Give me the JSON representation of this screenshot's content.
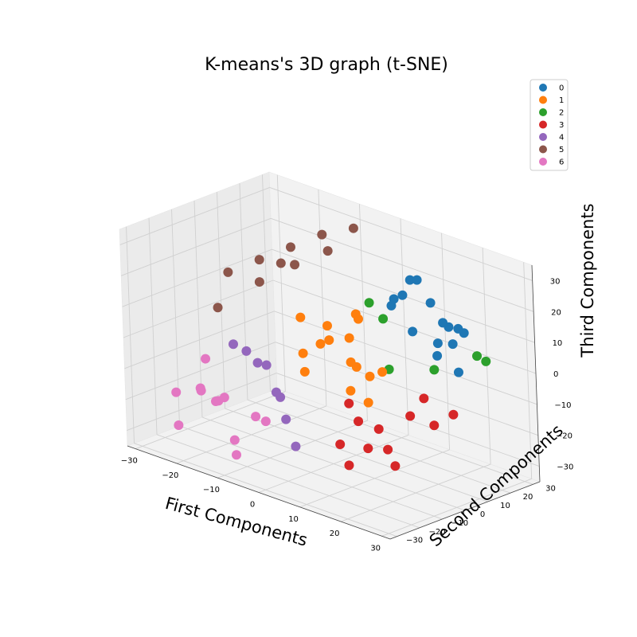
{
  "chart_data": {
    "type": "scatter",
    "projection": "3d",
    "title": "K-means's 3D graph (t-SNE)",
    "xlabel": "First Components",
    "ylabel": "Second Components",
    "zlabel": "Third Components",
    "xlim": [
      -32,
      32
    ],
    "ylim": [
      -33,
      33
    ],
    "zlim": [
      -35,
      35
    ],
    "x_ticks": [
      "−30",
      "−20",
      "−10",
      "0",
      "10",
      "20",
      "30"
    ],
    "y_ticks": [
      "−30",
      "−20",
      "−10",
      "0",
      "10",
      "20",
      "30"
    ],
    "z_ticks": [
      "−30",
      "−20",
      "−10",
      "0",
      "10",
      "20",
      "30"
    ],
    "grid": true,
    "legend_position": "top-right",
    "series": [
      {
        "name": "0",
        "color": "#1f77b4",
        "points": [
          [
            10,
            15,
            20
          ],
          [
            14,
            20,
            18
          ],
          [
            8,
            22,
            22
          ],
          [
            18,
            18,
            14
          ],
          [
            20,
            12,
            10
          ],
          [
            15,
            10,
            12
          ],
          [
            22,
            8,
            8
          ],
          [
            12,
            18,
            25
          ],
          [
            24,
            14,
            16
          ],
          [
            16,
            24,
            10
          ],
          [
            5,
            20,
            15
          ],
          [
            26,
            10,
            4
          ],
          [
            18,
            22,
            6
          ],
          [
            10,
            10,
            18
          ],
          [
            22,
            20,
            12
          ]
        ]
      },
      {
        "name": "1",
        "color": "#ff7f0e",
        "points": [
          [
            0,
            0,
            5
          ],
          [
            5,
            0,
            8
          ],
          [
            -5,
            5,
            0
          ],
          [
            8,
            -5,
            3
          ],
          [
            2,
            8,
            -5
          ],
          [
            -2,
            -8,
            2
          ],
          [
            10,
            5,
            -2
          ],
          [
            -8,
            2,
            8
          ],
          [
            6,
            -2,
            -8
          ],
          [
            0,
            12,
            10
          ],
          [
            12,
            -4,
            0
          ],
          [
            -4,
            -4,
            -6
          ],
          [
            4,
            6,
            12
          ],
          [
            8,
            2,
            -12
          ],
          [
            -6,
            10,
            4
          ]
        ]
      },
      {
        "name": "2",
        "color": "#2ca02c",
        "points": [
          [
            5,
            15,
            10
          ],
          [
            25,
            20,
            6
          ],
          [
            10,
            8,
            -2
          ],
          [
            30,
            15,
            8
          ],
          [
            20,
            10,
            2
          ],
          [
            0,
            18,
            12
          ]
        ]
      },
      {
        "name": "3",
        "color": "#d62728",
        "points": [
          [
            15,
            -15,
            -10
          ],
          [
            20,
            -20,
            -15
          ],
          [
            25,
            -10,
            -5
          ],
          [
            18,
            -25,
            -20
          ],
          [
            28,
            -5,
            -8
          ],
          [
            12,
            -18,
            -18
          ],
          [
            22,
            -12,
            -22
          ],
          [
            30,
            0,
            -5
          ],
          [
            16,
            -8,
            -14
          ],
          [
            26,
            -22,
            -12
          ],
          [
            10,
            -10,
            -8
          ],
          [
            24,
            -2,
            -2
          ]
        ]
      },
      {
        "name": "4",
        "color": "#9467bd",
        "points": [
          [
            -10,
            -10,
            -5
          ],
          [
            -15,
            -5,
            -8
          ],
          [
            -5,
            -15,
            -10
          ],
          [
            -12,
            -15,
            0
          ],
          [
            0,
            -20,
            -15
          ],
          [
            -8,
            -8,
            -15
          ],
          [
            5,
            -25,
            -20
          ],
          [
            -18,
            -10,
            -2
          ]
        ]
      },
      {
        "name": "5",
        "color": "#8c564b",
        "points": [
          [
            -20,
            20,
            20
          ],
          [
            -25,
            15,
            15
          ],
          [
            -30,
            10,
            10
          ],
          [
            -15,
            25,
            25
          ],
          [
            -10,
            30,
            28
          ],
          [
            -28,
            20,
            5
          ],
          [
            -22,
            25,
            12
          ],
          [
            -18,
            12,
            18
          ],
          [
            -30,
            5,
            0
          ],
          [
            -12,
            22,
            22
          ]
        ]
      },
      {
        "name": "6",
        "color": "#e377c2",
        "points": [
          [
            -15,
            -20,
            -15
          ],
          [
            -20,
            -15,
            -20
          ],
          [
            -25,
            -10,
            -10
          ],
          [
            -10,
            -25,
            -25
          ],
          [
            -18,
            -25,
            -12
          ],
          [
            -28,
            -18,
            -20
          ],
          [
            -12,
            -12,
            -22
          ],
          [
            -22,
            -28,
            -25
          ],
          [
            -5,
            -20,
            -18
          ],
          [
            -25,
            -5,
            -25
          ],
          [
            -15,
            -30,
            -10
          ],
          [
            -8,
            -28,
            -28
          ]
        ]
      }
    ]
  }
}
